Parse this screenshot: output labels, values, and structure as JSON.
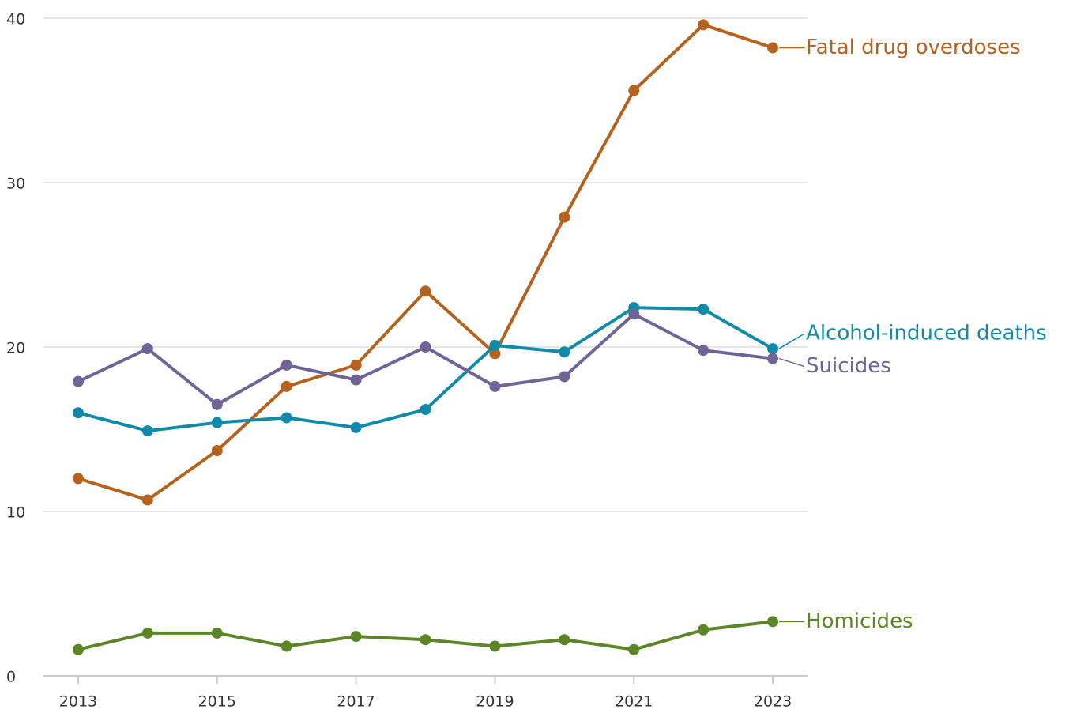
{
  "chart_data": {
    "type": "line",
    "x": [
      2013,
      2014,
      2015,
      2016,
      2017,
      2018,
      2019,
      2020,
      2021,
      2022,
      2023
    ],
    "xlim": [
      2012.5,
      2023.5
    ],
    "xticks": [
      2013,
      2015,
      2017,
      2019,
      2021,
      2023
    ],
    "ylim": [
      0,
      40
    ],
    "yticks": [
      0,
      10,
      20,
      30,
      40
    ],
    "grid": true,
    "series": [
      {
        "name": "Fatal drug overdoses",
        "color": "#b5621e",
        "values": [
          12.0,
          10.7,
          13.7,
          17.6,
          18.9,
          23.4,
          19.6,
          27.9,
          35.6,
          39.6,
          38.2
        ]
      },
      {
        "name": "Alcohol-induced deaths",
        "color": "#118aaa",
        "values": [
          16.0,
          14.9,
          15.4,
          15.7,
          15.1,
          16.2,
          20.1,
          19.7,
          22.4,
          22.3,
          19.9
        ]
      },
      {
        "name": "Suicides",
        "color": "#6e6596",
        "values": [
          17.9,
          19.9,
          16.5,
          18.9,
          18.0,
          20.0,
          17.6,
          18.2,
          22.0,
          19.8,
          19.3
        ]
      },
      {
        "name": "Homicides",
        "color": "#5b8526",
        "values": [
          1.6,
          2.6,
          2.6,
          1.8,
          2.4,
          2.2,
          1.8,
          2.2,
          1.6,
          2.8,
          3.3
        ]
      }
    ]
  }
}
